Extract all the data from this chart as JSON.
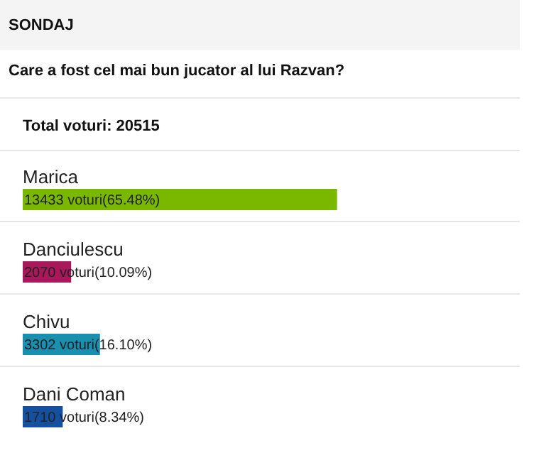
{
  "chart_data": {
    "type": "bar",
    "orientation": "horizontal",
    "title": "Care a fost cel mai bun jucator al lui Razvan?",
    "annotations": [
      "SONDAJ",
      "Total voturi: 20515"
    ],
    "categories": [
      "Marica",
      "Danciulescu",
      "Chivu",
      "Dani Coman"
    ],
    "values": [
      13433,
      2070,
      3302,
      1710
    ],
    "colors": [
      "#7ab800",
      "#a8185a",
      "#1a8fb0",
      "#1550a0"
    ],
    "value_labels": [
      "13433 voturi(65.48%)",
      "2070 voturi(10.09%)",
      "3302 voturi(16.10%)",
      "1710 voturi(8.34%)"
    ]
  }
}
